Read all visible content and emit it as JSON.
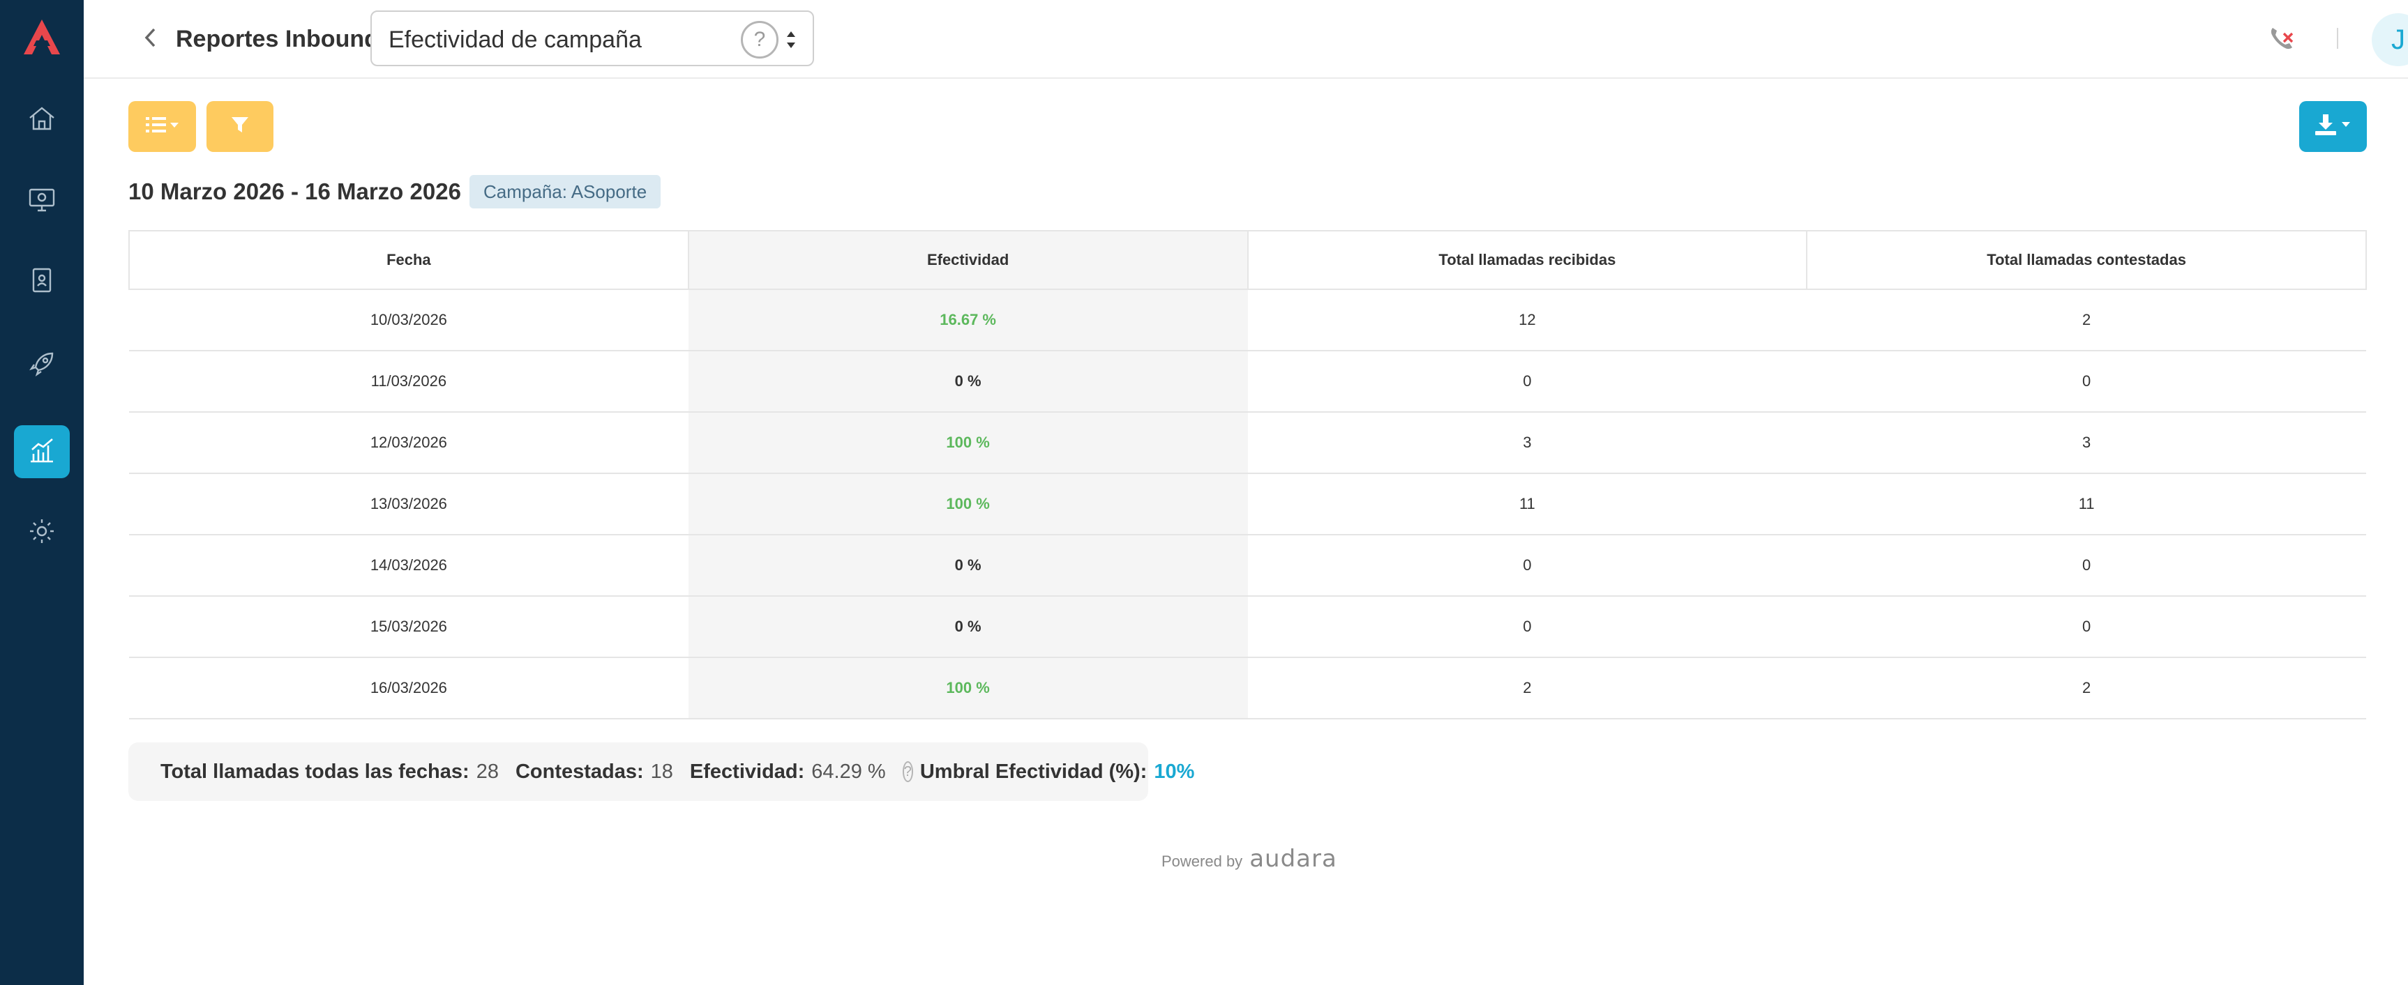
{
  "header": {
    "section_label": "Reportes Inbound:",
    "report_select_value": "Efectividad de campaña",
    "help_glyph": "?",
    "avatar_initial": "J"
  },
  "sidebar": {
    "items": [
      {
        "icon": "home-icon",
        "active": false
      },
      {
        "icon": "monitor-icon",
        "active": false
      },
      {
        "icon": "contacts-book-icon",
        "active": false
      },
      {
        "icon": "rocket-icon",
        "active": false
      },
      {
        "icon": "reports-chart-icon",
        "active": true
      },
      {
        "icon": "settings-gear-icon",
        "active": false
      }
    ]
  },
  "filters": {
    "date_range": "10 Marzo 2026 - 16 Marzo 2026",
    "campaign_badge": "Campaña: ASoporte"
  },
  "table": {
    "headers": [
      "Fecha",
      "Efectividad",
      "Total llamadas recibidas",
      "Total llamadas contestadas"
    ],
    "rows": [
      {
        "fecha": "10/03/2026",
        "efectividad": "16.67 %",
        "recibidas": "12",
        "contestadas": "2"
      },
      {
        "fecha": "11/03/2026",
        "efectividad": "0 %",
        "recibidas": "0",
        "contestadas": "0"
      },
      {
        "fecha": "12/03/2026",
        "efectividad": "100 %",
        "recibidas": "3",
        "contestadas": "3"
      },
      {
        "fecha": "13/03/2026",
        "efectividad": "100 %",
        "recibidas": "11",
        "contestadas": "11"
      },
      {
        "fecha": "14/03/2026",
        "efectividad": "0 %",
        "recibidas": "0",
        "contestadas": "0"
      },
      {
        "fecha": "15/03/2026",
        "efectividad": "0 %",
        "recibidas": "0",
        "contestadas": "0"
      },
      {
        "fecha": "16/03/2026",
        "efectividad": "100 %",
        "recibidas": "2",
        "contestadas": "2"
      }
    ]
  },
  "summary": {
    "total_label": "Total llamadas todas las fechas:",
    "total_value": "28",
    "answered_label": "Contestadas:",
    "answered_value": "18",
    "effectiveness_label": "Efectividad:",
    "effectiveness_value": "64.29 %",
    "threshold_label": "Umbral Efectividad (%):",
    "threshold_value": "10%",
    "help_glyph": "?"
  },
  "footer": {
    "powered_by": "Powered by",
    "brand": "audara"
  },
  "colors": {
    "sidebar_bg": "#0c2d48",
    "accent": "#19a8d2",
    "warning_button": "#fecb5f",
    "good_text": "#5cb85c",
    "logo_red": "#e8474c"
  }
}
